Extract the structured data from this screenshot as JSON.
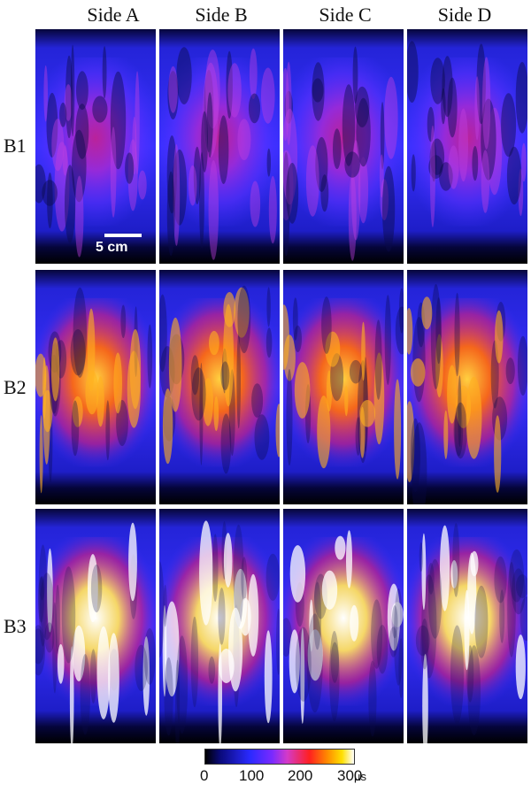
{
  "columns": [
    "Side A",
    "Side B",
    "Side C",
    "Side D"
  ],
  "rows": [
    "B1",
    "B2",
    "B3"
  ],
  "scale_bar_label": "5 cm",
  "colorbar": {
    "ticks": [
      "0",
      "100",
      "200",
      "300"
    ],
    "unit": "µs"
  }
}
